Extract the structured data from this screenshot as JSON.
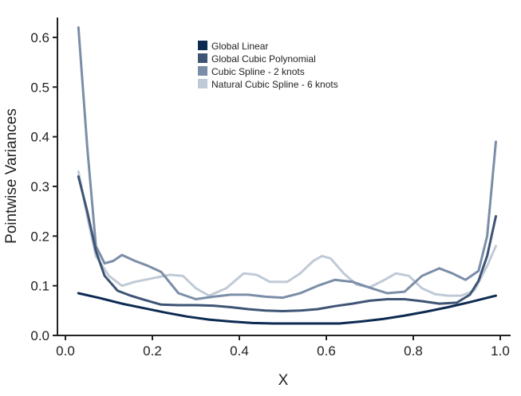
{
  "chart_data": {
    "type": "line",
    "title": "",
    "xlabel": "X",
    "ylabel": "Pointwise Variances",
    "xlim": [
      0.0,
      1.0
    ],
    "ylim": [
      0.0,
      0.64
    ],
    "xticks": [
      0.0,
      0.2,
      0.4,
      0.6,
      0.8,
      1.0
    ],
    "xtick_labels": [
      "0.0",
      "0.2",
      "0.4",
      "0.6",
      "0.8",
      "1.0"
    ],
    "yticks": [
      0.0,
      0.1,
      0.2,
      0.3,
      0.4,
      0.5,
      0.6
    ],
    "ytick_labels": [
      "0.0",
      "0.1",
      "0.2",
      "0.3",
      "0.4",
      "0.5",
      "0.6"
    ],
    "grid": false,
    "legend_position": "top-center",
    "series": [
      {
        "name": "Global Linear",
        "color": "#0d2a52",
        "x": [
          0.03,
          0.08,
          0.13,
          0.18,
          0.23,
          0.28,
          0.33,
          0.38,
          0.43,
          0.48,
          0.53,
          0.58,
          0.63,
          0.68,
          0.73,
          0.78,
          0.83,
          0.88,
          0.93,
          0.99
        ],
        "y": [
          0.085,
          0.075,
          0.064,
          0.055,
          0.046,
          0.038,
          0.032,
          0.028,
          0.025,
          0.024,
          0.024,
          0.024,
          0.024,
          0.028,
          0.033,
          0.04,
          0.048,
          0.057,
          0.067,
          0.08
        ]
      },
      {
        "name": "Global Cubic Polynomial",
        "color": "#3e5474",
        "x": [
          0.03,
          0.05,
          0.07,
          0.09,
          0.12,
          0.15,
          0.18,
          0.22,
          0.26,
          0.3,
          0.34,
          0.38,
          0.42,
          0.46,
          0.5,
          0.54,
          0.58,
          0.62,
          0.66,
          0.7,
          0.74,
          0.78,
          0.82,
          0.86,
          0.9,
          0.93,
          0.95,
          0.97,
          0.99
        ],
        "y": [
          0.32,
          0.25,
          0.17,
          0.12,
          0.09,
          0.08,
          0.072,
          0.062,
          0.061,
          0.061,
          0.06,
          0.057,
          0.053,
          0.05,
          0.049,
          0.05,
          0.053,
          0.059,
          0.064,
          0.07,
          0.073,
          0.073,
          0.069,
          0.064,
          0.066,
          0.082,
          0.11,
          0.16,
          0.24
        ]
      },
      {
        "name": "Cubic Spline - 2 knots",
        "color": "#7b8ea7",
        "x": [
          0.03,
          0.05,
          0.07,
          0.09,
          0.11,
          0.13,
          0.16,
          0.19,
          0.22,
          0.26,
          0.3,
          0.34,
          0.38,
          0.42,
          0.46,
          0.5,
          0.54,
          0.58,
          0.62,
          0.66,
          0.7,
          0.74,
          0.78,
          0.82,
          0.86,
          0.89,
          0.92,
          0.95,
          0.97,
          0.99
        ],
        "y": [
          0.62,
          0.38,
          0.18,
          0.145,
          0.15,
          0.162,
          0.15,
          0.14,
          0.128,
          0.085,
          0.073,
          0.078,
          0.082,
          0.082,
          0.078,
          0.076,
          0.085,
          0.1,
          0.112,
          0.108,
          0.096,
          0.085,
          0.088,
          0.12,
          0.135,
          0.125,
          0.112,
          0.13,
          0.2,
          0.39
        ]
      },
      {
        "name": "Natural Cubic Spline - 6 knots",
        "color": "#c0cad7",
        "x": [
          0.03,
          0.05,
          0.07,
          0.1,
          0.13,
          0.16,
          0.2,
          0.24,
          0.27,
          0.3,
          0.33,
          0.37,
          0.41,
          0.44,
          0.47,
          0.51,
          0.54,
          0.57,
          0.59,
          0.61,
          0.64,
          0.67,
          0.7,
          0.73,
          0.76,
          0.79,
          0.82,
          0.85,
          0.88,
          0.91,
          0.94,
          0.97,
          0.99
        ],
        "y": [
          0.33,
          0.24,
          0.16,
          0.12,
          0.1,
          0.108,
          0.115,
          0.122,
          0.12,
          0.095,
          0.08,
          0.095,
          0.125,
          0.122,
          0.108,
          0.108,
          0.125,
          0.15,
          0.16,
          0.155,
          0.125,
          0.102,
          0.097,
          0.11,
          0.125,
          0.12,
          0.095,
          0.083,
          0.08,
          0.08,
          0.09,
          0.14,
          0.18
        ]
      }
    ]
  }
}
